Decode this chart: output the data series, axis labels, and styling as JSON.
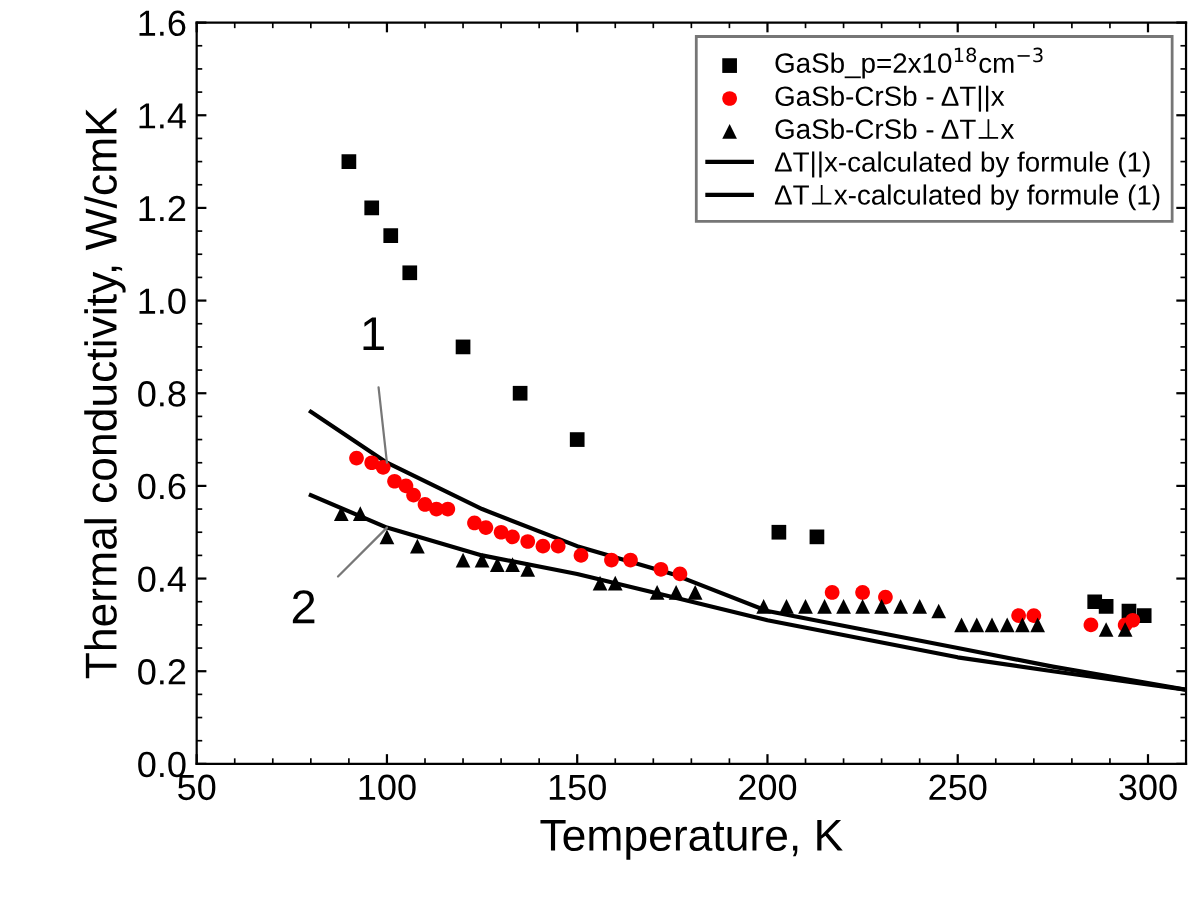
{
  "chart_data": {
    "type": "scatter",
    "xlabel": "Temperature, K",
    "ylabel": "Thermal conductivity, W/cmK",
    "xlim": [
      50,
      310
    ],
    "xticks": [
      50,
      100,
      150,
      200,
      250,
      300
    ],
    "ylim": [
      0.0,
      1.6
    ],
    "yticks": [
      {
        "value": 0.0,
        "label": "0.0"
      },
      0.2,
      0.4,
      0.6,
      0.8,
      {
        "value": 1.0,
        "label": "1.0"
      },
      1.2,
      1.4,
      1.6
    ],
    "grid": false,
    "legend": "top right",
    "series": [
      {
        "name": "GaSb_p=2x10$^{18}$cm$^{−3}$",
        "marker": "square",
        "color": "#000000",
        "x": [
          90,
          96,
          101,
          106,
          120,
          135,
          150,
          203,
          213,
          286,
          289,
          295,
          299
        ],
        "values": [
          1.3,
          1.2,
          1.14,
          1.06,
          0.9,
          0.8,
          0.7,
          0.5,
          0.49,
          0.35,
          0.34,
          0.33,
          0.32
        ]
      },
      {
        "name": "GaSb-CrSb - ΔT||x",
        "marker": "circle",
        "color": "#ff0000",
        "x": [
          92,
          96,
          99,
          102,
          105,
          107,
          110,
          113,
          116,
          123,
          126,
          130,
          133,
          137,
          141,
          145,
          151,
          159,
          164,
          172,
          177,
          217,
          225,
          231,
          266,
          270,
          285,
          294,
          296
        ],
        "values": [
          0.66,
          0.65,
          0.64,
          0.61,
          0.6,
          0.58,
          0.56,
          0.55,
          0.55,
          0.52,
          0.51,
          0.5,
          0.49,
          0.48,
          0.47,
          0.47,
          0.45,
          0.44,
          0.44,
          0.42,
          0.41,
          0.37,
          0.37,
          0.36,
          0.32,
          0.32,
          0.3,
          0.3,
          0.31
        ]
      },
      {
        "name": "GaSb-CrSb - ΔT⊥x",
        "marker": "triangle",
        "color": "#000000",
        "x": [
          88,
          93,
          100,
          108,
          120,
          125,
          129,
          133,
          137,
          156,
          160,
          171,
          176,
          181,
          199,
          205,
          210,
          215,
          220,
          225,
          230,
          235,
          240,
          245,
          251,
          255,
          259,
          263,
          267,
          271,
          289,
          294
        ],
        "values": [
          0.54,
          0.54,
          0.49,
          0.47,
          0.44,
          0.44,
          0.43,
          0.43,
          0.42,
          0.39,
          0.39,
          0.37,
          0.37,
          0.37,
          0.34,
          0.34,
          0.34,
          0.34,
          0.34,
          0.34,
          0.34,
          0.34,
          0.34,
          0.33,
          0.3,
          0.3,
          0.3,
          0.3,
          0.3,
          0.3,
          0.29,
          0.29
        ]
      },
      {
        "name": "ΔT||x-calculated by formule (1)",
        "type": "line",
        "marker": "none",
        "line_style": "solid",
        "color": "#000000",
        "x": [
          80,
          100,
          125,
          150,
          175,
          200,
          225,
          250,
          275,
          310
        ],
        "values": [
          0.76,
          0.65,
          0.55,
          0.47,
          0.41,
          0.33,
          0.29,
          0.25,
          0.21,
          0.16
        ]
      },
      {
        "name": "ΔT⊥x-calculated by formule (1)",
        "type": "line",
        "marker": "none",
        "line_style": "solid",
        "color": "#000000",
        "x": [
          80,
          100,
          125,
          150,
          175,
          200,
          225,
          250,
          275,
          310
        ],
        "values": [
          0.58,
          0.51,
          0.45,
          0.41,
          0.36,
          0.31,
          0.27,
          0.23,
          0.2,
          0.16
        ]
      }
    ],
    "annotations": [
      {
        "text": "1",
        "x": 100,
        "y": 0.65
      },
      {
        "text": "2",
        "x": 100,
        "y": 0.51
      }
    ]
  }
}
